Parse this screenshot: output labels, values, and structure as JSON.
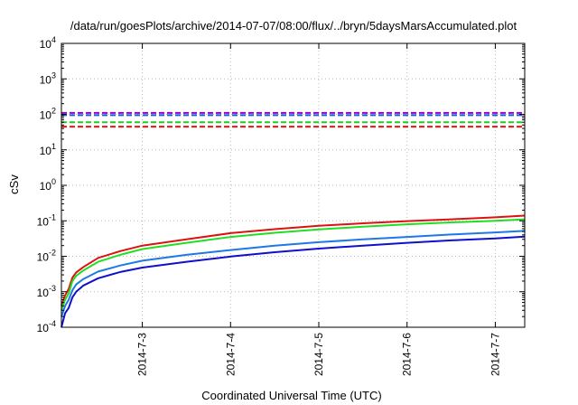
{
  "chart_data": {
    "type": "line",
    "title": "/data/run/goesPlots/archive/2014-07-07/08:00/flux/../bryn/5daysMarsAccumulated.plot",
    "xlabel": "Coordinated Universal Time (UTC)",
    "ylabel": "cSv",
    "x_range": [
      "2014-07-02T02:00",
      "2014-07-07T08:00"
    ],
    "x_ticks": [
      "2014-7-3",
      "2014-7-4",
      "2014-7-5",
      "2014-7-6",
      "2014-7-7"
    ],
    "y_scale": "log",
    "ylim": [
      0.0001,
      10000
    ],
    "y_ticks": [
      {
        "base": "10",
        "exp": "-4",
        "value": 0.0001
      },
      {
        "base": "10",
        "exp": "-3",
        "value": 0.001
      },
      {
        "base": "10",
        "exp": "-2",
        "value": 0.01
      },
      {
        "base": "10",
        "exp": "-1",
        "value": 0.1
      },
      {
        "base": "10",
        "exp": "0",
        "value": 1
      },
      {
        "base": "10",
        "exp": "1",
        "value": 10
      },
      {
        "base": "10",
        "exp": "2",
        "value": 100
      },
      {
        "base": "10",
        "exp": "3",
        "value": 1000
      },
      {
        "base": "10",
        "exp": "4",
        "value": 10000
      }
    ],
    "grid": true,
    "legend": "none",
    "thresholds": [
      {
        "color": "#9900cc",
        "value": 110,
        "style": "dashed"
      },
      {
        "color": "#1c5ad6",
        "value": 95,
        "style": "dashed"
      },
      {
        "color": "#22cc22",
        "value": 60,
        "style": "dashed"
      },
      {
        "color": "#ee1111",
        "value": 45,
        "style": "dashed"
      }
    ],
    "series": [
      {
        "color": "#dd1111",
        "points": [
          [
            "2014-07-02T02:00",
            0.0004
          ],
          [
            "2014-07-02T03:00",
            0.0008
          ],
          [
            "2014-07-02T04:00",
            0.0012
          ],
          [
            "2014-07-02T05:00",
            0.0025
          ],
          [
            "2014-07-02T06:00",
            0.0035
          ],
          [
            "2014-07-02T08:00",
            0.005
          ],
          [
            "2014-07-02T12:00",
            0.009
          ],
          [
            "2014-07-02T18:00",
            0.014
          ],
          [
            "2014-07-03T00:00",
            0.02
          ],
          [
            "2014-07-03T12:00",
            0.03
          ],
          [
            "2014-07-04T00:00",
            0.045
          ],
          [
            "2014-07-04T12:00",
            0.058
          ],
          [
            "2014-07-05T00:00",
            0.072
          ],
          [
            "2014-07-05T12:00",
            0.085
          ],
          [
            "2014-07-06T00:00",
            0.098
          ],
          [
            "2014-07-06T12:00",
            0.11
          ],
          [
            "2014-07-07T00:00",
            0.125
          ],
          [
            "2014-07-07T08:00",
            0.14
          ]
        ]
      },
      {
        "color": "#22dd22",
        "points": [
          [
            "2014-07-02T02:00",
            0.0003
          ],
          [
            "2014-07-02T03:00",
            0.0006
          ],
          [
            "2014-07-02T04:00",
            0.0009
          ],
          [
            "2014-07-02T05:00",
            0.002
          ],
          [
            "2014-07-02T06:00",
            0.0028
          ],
          [
            "2014-07-02T08:00",
            0.004
          ],
          [
            "2014-07-02T12:00",
            0.007
          ],
          [
            "2014-07-02T18:00",
            0.011
          ],
          [
            "2014-07-03T00:00",
            0.016
          ],
          [
            "2014-07-03T12:00",
            0.024
          ],
          [
            "2014-07-04T00:00",
            0.035
          ],
          [
            "2014-07-04T12:00",
            0.046
          ],
          [
            "2014-07-05T00:00",
            0.057
          ],
          [
            "2014-07-05T12:00",
            0.068
          ],
          [
            "2014-07-06T00:00",
            0.08
          ],
          [
            "2014-07-06T12:00",
            0.09
          ],
          [
            "2014-07-07T00:00",
            0.1
          ],
          [
            "2014-07-07T08:00",
            0.11
          ]
        ]
      },
      {
        "color": "#1e78e6",
        "points": [
          [
            "2014-07-02T02:00",
            0.0002
          ],
          [
            "2014-07-02T03:00",
            0.0004
          ],
          [
            "2014-07-02T04:00",
            0.0006
          ],
          [
            "2014-07-02T05:00",
            0.0011
          ],
          [
            "2014-07-02T06:00",
            0.0016
          ],
          [
            "2014-07-02T08:00",
            0.0023
          ],
          [
            "2014-07-02T12:00",
            0.0037
          ],
          [
            "2014-07-02T18:00",
            0.0055
          ],
          [
            "2014-07-03T00:00",
            0.0075
          ],
          [
            "2014-07-03T12:00",
            0.011
          ],
          [
            "2014-07-04T00:00",
            0.015
          ],
          [
            "2014-07-04T12:00",
            0.02
          ],
          [
            "2014-07-05T00:00",
            0.025
          ],
          [
            "2014-07-05T12:00",
            0.03
          ],
          [
            "2014-07-06T00:00",
            0.035
          ],
          [
            "2014-07-06T12:00",
            0.041
          ],
          [
            "2014-07-07T00:00",
            0.047
          ],
          [
            "2014-07-07T08:00",
            0.052
          ]
        ]
      },
      {
        "color": "#1010cc",
        "points": [
          [
            "2014-07-02T02:00",
            0.0001
          ],
          [
            "2014-07-02T03:00",
            0.00025
          ],
          [
            "2014-07-02T04:00",
            0.00035
          ],
          [
            "2014-07-02T05:00",
            0.0007
          ],
          [
            "2014-07-02T06:00",
            0.001
          ],
          [
            "2014-07-02T08:00",
            0.0015
          ],
          [
            "2014-07-02T12:00",
            0.0024
          ],
          [
            "2014-07-02T18:00",
            0.0036
          ],
          [
            "2014-07-03T00:00",
            0.0048
          ],
          [
            "2014-07-03T12:00",
            0.007
          ],
          [
            "2014-07-04T00:00",
            0.0098
          ],
          [
            "2014-07-04T12:00",
            0.013
          ],
          [
            "2014-07-05T00:00",
            0.0165
          ],
          [
            "2014-07-05T12:00",
            0.02
          ],
          [
            "2014-07-06T00:00",
            0.024
          ],
          [
            "2014-07-06T12:00",
            0.028
          ],
          [
            "2014-07-07T00:00",
            0.032
          ],
          [
            "2014-07-07T08:00",
            0.036
          ]
        ]
      }
    ]
  }
}
